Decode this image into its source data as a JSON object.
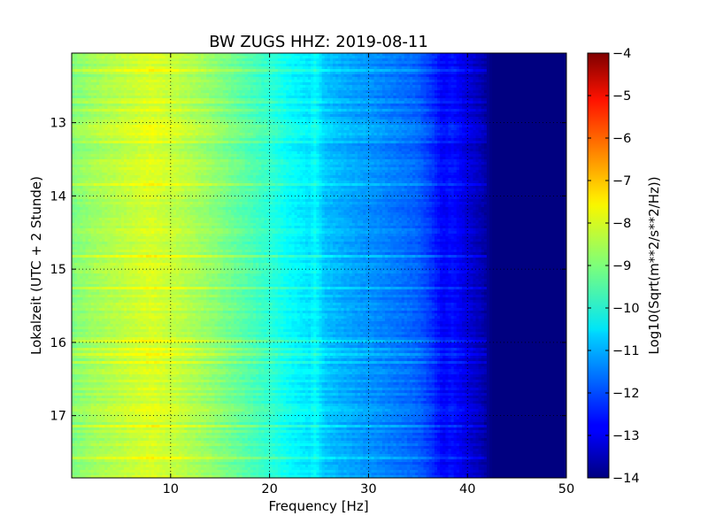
{
  "chart_data": {
    "type": "heatmap",
    "title": "BW ZUGS HHZ: 2019-08-11",
    "xlabel": "Frequency [Hz]",
    "ylabel": "Lokalzeit (UTC + 2 Stunde)",
    "xlim": [
      0,
      50
    ],
    "ylim_top_to_bottom": [
      12.05,
      17.85
    ],
    "x_ticks": [
      10,
      20,
      30,
      40,
      50
    ],
    "x_tick_labels": [
      "10",
      "20",
      "30",
      "40",
      "50"
    ],
    "y_ticks": [
      13,
      14,
      15,
      16,
      17
    ],
    "y_tick_labels": [
      "13",
      "14",
      "15",
      "16",
      "17"
    ],
    "grid": true,
    "colormap": "jet",
    "colorbar": {
      "label": "Log10(Sqrt(m**2/s**2/Hz))",
      "min": -14,
      "max": -4,
      "ticks": [
        -4,
        -5,
        -6,
        -7,
        -8,
        -9,
        -10,
        -11,
        -12,
        -13,
        -14
      ],
      "tick_labels": [
        "−4",
        "−5",
        "−6",
        "−7",
        "−8",
        "−9",
        "−10",
        "−11",
        "−12",
        "−13",
        "−14"
      ]
    },
    "spectrum_profile": {
      "frequency_hz": [
        0,
        2,
        5,
        8,
        11,
        14,
        17,
        20,
        22,
        24,
        24.6,
        25.5,
        27,
        30,
        33,
        35,
        36.5,
        37.5,
        38.5,
        40,
        41.5,
        42.5,
        45,
        50
      ],
      "log10_amplitude": [
        -9.0,
        -8.7,
        -8.4,
        -8.1,
        -8.4,
        -8.8,
        -9.3,
        -9.8,
        -10.2,
        -10.5,
        -10.2,
        -10.8,
        -11.0,
        -11.3,
        -11.6,
        -11.8,
        -12.3,
        -12.8,
        -12.6,
        -13.1,
        -13.5,
        -14.0,
        -14.0,
        -14.0
      ]
    }
  }
}
